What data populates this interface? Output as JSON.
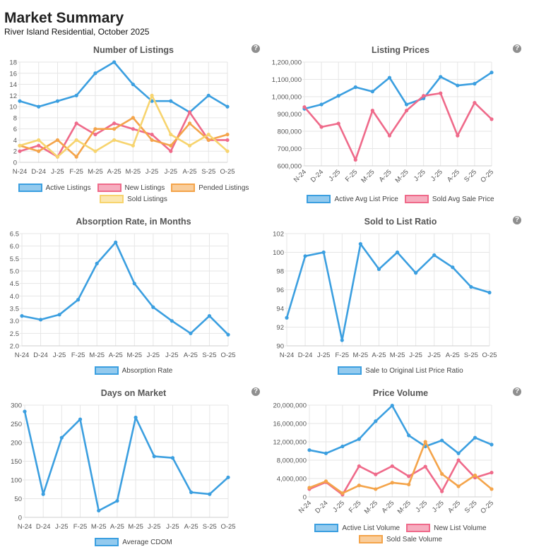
{
  "header": {
    "title": "Market Summary",
    "subtitle": "River Island Residential, October 2025"
  },
  "help_icon": "?",
  "colors": {
    "blue": "#3b9fe0",
    "pink": "#ef6a8a",
    "orange": "#f4a44a",
    "yellow": "#f7d46e",
    "grid": "#e6e6e6"
  },
  "chart_data": [
    {
      "id": "listings",
      "type": "line",
      "title": "Number of Listings",
      "categories": [
        "N-24",
        "D-24",
        "J-25",
        "F-25",
        "M-25",
        "A-25",
        "M-25",
        "J-25",
        "J-25",
        "A-25",
        "S-25",
        "O-25"
      ],
      "yticks": [
        "0",
        "2",
        "4",
        "6",
        "8",
        "10",
        "12",
        "14",
        "16",
        "18"
      ],
      "ylim": [
        0,
        18
      ],
      "rotate_x": false,
      "series": [
        {
          "name": "Active Listings",
          "color": "#3b9fe0",
          "values": [
            11,
            10,
            11,
            12,
            16,
            18,
            14,
            11,
            11,
            9,
            12,
            10
          ]
        },
        {
          "name": "New Listings",
          "color": "#ef6a8a",
          "values": [
            2,
            3,
            1,
            7,
            5,
            7,
            6,
            5,
            2,
            9,
            4,
            4
          ]
        },
        {
          "name": "Pended Listings",
          "color": "#f4a44a",
          "values": [
            3,
            2,
            4,
            1,
            6,
            6,
            8,
            4,
            3,
            7,
            4,
            5
          ]
        },
        {
          "name": "Sold Listings",
          "color": "#f7d46e",
          "values": [
            3,
            4,
            1,
            4,
            2,
            4,
            3,
            12,
            5,
            3,
            5,
            2
          ]
        }
      ],
      "legend_rows": [
        [
          0,
          1,
          2
        ],
        [
          3
        ]
      ]
    },
    {
      "id": "prices",
      "type": "line",
      "title": "Listing Prices",
      "categories": [
        "N-24",
        "D-24",
        "J-25",
        "F-25",
        "M-25",
        "A-25",
        "M-25",
        "J-25",
        "J-25",
        "A-25",
        "S-25",
        "O-25"
      ],
      "yticks": [
        "600,000",
        "700,000",
        "800,000",
        "900,000",
        "1,000,000",
        "1,100,000",
        "1,200,000"
      ],
      "ylim": [
        600000,
        1200000
      ],
      "rotate_x": true,
      "series": [
        {
          "name": "Active Avg List Price",
          "color": "#3b9fe0",
          "values": [
            930000,
            955000,
            1005000,
            1055000,
            1030000,
            1110000,
            955000,
            990000,
            1115000,
            1065000,
            1075000,
            1140000
          ]
        },
        {
          "name": "Sold Avg Sale Price",
          "color": "#ef6a8a",
          "values": [
            940000,
            825000,
            845000,
            635000,
            920000,
            775000,
            920000,
            1005000,
            1020000,
            775000,
            965000,
            870000
          ]
        }
      ],
      "legend_rows": [
        [
          0,
          1
        ]
      ]
    },
    {
      "id": "absorption",
      "type": "line",
      "title": "Absorption Rate, in Months",
      "categories": [
        "N-24",
        "D-24",
        "J-25",
        "F-25",
        "M-25",
        "A-25",
        "M-25",
        "J-25",
        "J-25",
        "A-25",
        "S-25",
        "O-25"
      ],
      "yticks": [
        "2.0",
        "2.5",
        "3.0",
        "3.5",
        "4.0",
        "4.5",
        "5.0",
        "5.5",
        "6.0",
        "6.5"
      ],
      "ylim": [
        2.0,
        6.5
      ],
      "rotate_x": false,
      "series": [
        {
          "name": "Absorption Rate",
          "color": "#3b9fe0",
          "values": [
            3.2,
            3.05,
            3.25,
            3.85,
            5.3,
            6.15,
            4.5,
            3.55,
            3.0,
            2.5,
            3.2,
            2.45
          ]
        }
      ],
      "legend_rows": [
        [
          0
        ]
      ]
    },
    {
      "id": "ratio",
      "type": "line",
      "title": "Sold to List Ratio",
      "categories": [
        "N-24",
        "D-24",
        "J-25",
        "F-25",
        "M-25",
        "A-25",
        "M-25",
        "J-25",
        "J-25",
        "A-25",
        "S-25",
        "O-25"
      ],
      "yticks": [
        "90",
        "92",
        "94",
        "96",
        "98",
        "100",
        "102"
      ],
      "ylim": [
        90,
        102
      ],
      "rotate_x": false,
      "series": [
        {
          "name": "Sale to Original List Price Ratio",
          "color": "#3b9fe0",
          "values": [
            93,
            99.6,
            100,
            90.6,
            100.9,
            98.2,
            100,
            97.8,
            99.7,
            98.4,
            96.3,
            95.7
          ]
        }
      ],
      "legend_rows": [
        [
          0
        ]
      ]
    },
    {
      "id": "dom",
      "type": "line",
      "title": "Days on Market",
      "categories": [
        "N-24",
        "D-24",
        "J-25",
        "F-25",
        "M-25",
        "A-25",
        "M-25",
        "J-25",
        "J-25",
        "A-25",
        "S-25",
        "O-25"
      ],
      "yticks": [
        "0",
        "50",
        "100",
        "150",
        "200",
        "250",
        "300"
      ],
      "ylim": [
        0,
        300
      ],
      "rotate_x": false,
      "series": [
        {
          "name": "Average CDOM",
          "color": "#3b9fe0",
          "values": [
            283,
            62,
            213,
            262,
            18,
            44,
            267,
            163,
            159,
            67,
            62,
            107
          ]
        }
      ],
      "legend_rows": [
        [
          0
        ]
      ]
    },
    {
      "id": "volume",
      "type": "line",
      "title": "Price Volume",
      "categories": [
        "N-24",
        "D-24",
        "J-25",
        "F-25",
        "M-25",
        "A-25",
        "M-25",
        "J-25",
        "J-25",
        "A-25",
        "S-25",
        "O-25"
      ],
      "yticks": [
        "0",
        "4,000,000",
        "8,000,000",
        "12,000,000",
        "16,000,000",
        "20,000,000"
      ],
      "ylim": [
        0,
        20000000
      ],
      "rotate_x": true,
      "series": [
        {
          "name": "Active List Volume",
          "color": "#3b9fe0",
          "values": [
            10200000,
            9500000,
            11000000,
            12600000,
            16500000,
            19900000,
            13400000,
            11000000,
            12300000,
            9500000,
            12900000,
            11400000
          ]
        },
        {
          "name": "New List Volume",
          "color": "#ef6a8a",
          "values": [
            1700000,
            3200000,
            500000,
            6700000,
            4900000,
            6700000,
            4500000,
            6600000,
            1200000,
            8000000,
            4200000,
            5300000
          ]
        },
        {
          "name": "Sold Sale Volume",
          "color": "#f4a44a",
          "values": [
            2000000,
            3400000,
            800000,
            2500000,
            1700000,
            3100000,
            2700000,
            12000000,
            5000000,
            2300000,
            4700000,
            1700000
          ]
        }
      ],
      "legend_rows": [
        [
          0,
          1
        ],
        [
          2
        ]
      ]
    }
  ]
}
